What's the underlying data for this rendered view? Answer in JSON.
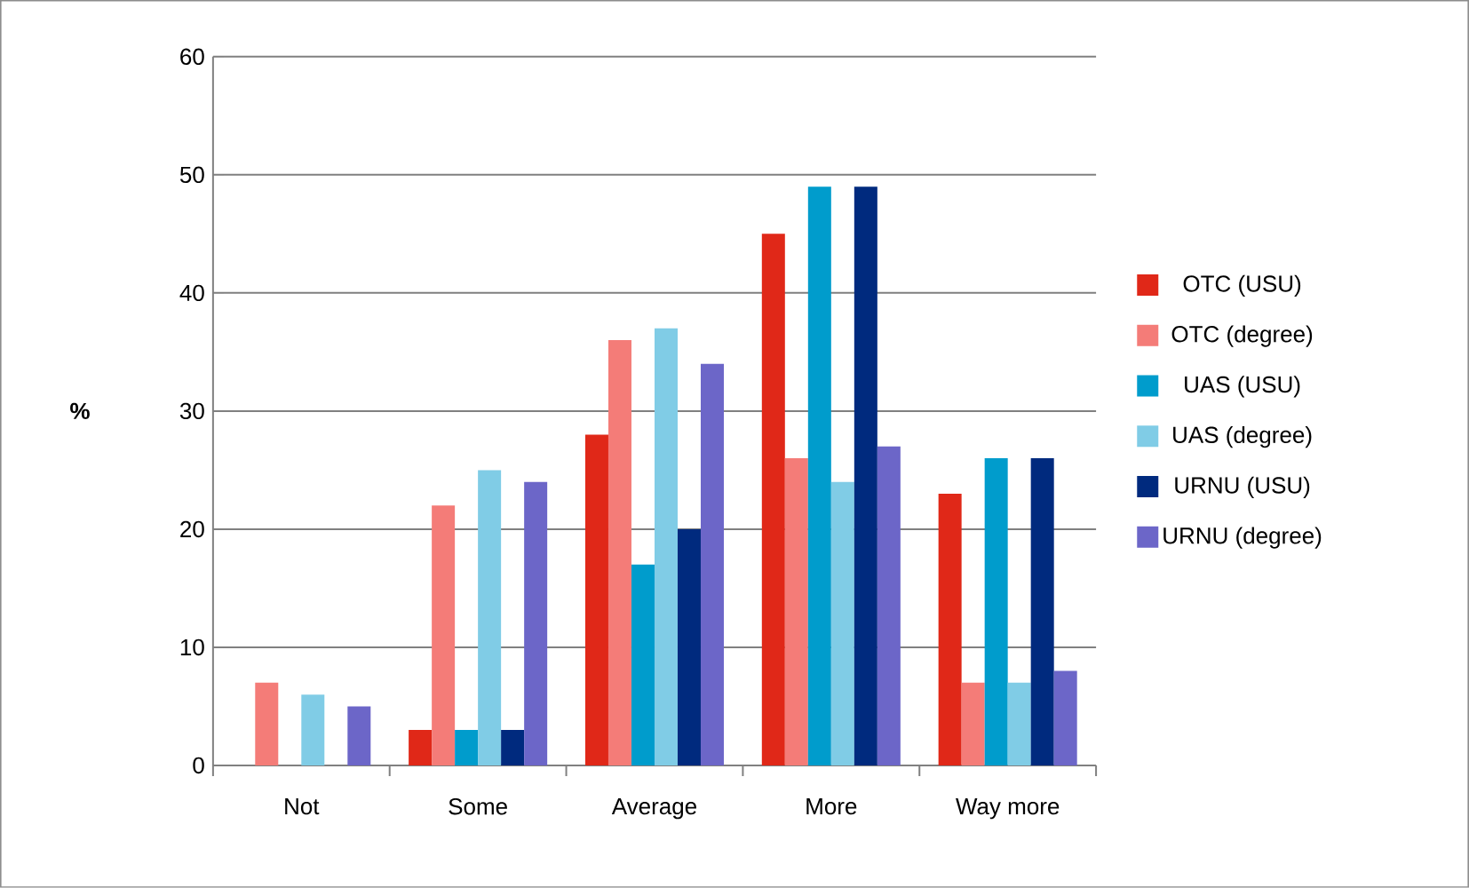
{
  "chart_data": {
    "type": "bar",
    "ylabel": "%",
    "categories": [
      "Not",
      "Some",
      "Average",
      "More",
      "Way more"
    ],
    "series": [
      {
        "name": "OTC (USU)",
        "color": "#e02818",
        "values": [
          0,
          3,
          28,
          45,
          23
        ]
      },
      {
        "name": "OTC (degree)",
        "color": "#f47c78",
        "values": [
          7,
          22,
          36,
          26,
          7
        ]
      },
      {
        "name": "UAS (USU)",
        "color": "#009ccc",
        "values": [
          0,
          3,
          17,
          49,
          26
        ]
      },
      {
        "name": "UAS (degree)",
        "color": "#80cce6",
        "values": [
          6,
          25,
          37,
          24,
          7
        ]
      },
      {
        "name": "URNU (USU)",
        "color": "#002a7e",
        "values": [
          0,
          3,
          20,
          49,
          26
        ]
      },
      {
        "name": "URNU (degree)",
        "color": "#6c66c8",
        "values": [
          5,
          24,
          34,
          27,
          8
        ]
      }
    ],
    "ylim": [
      0,
      60
    ],
    "yticks": [
      0,
      10,
      20,
      30,
      40,
      50,
      60
    ],
    "grid": "y",
    "legend": "right"
  }
}
